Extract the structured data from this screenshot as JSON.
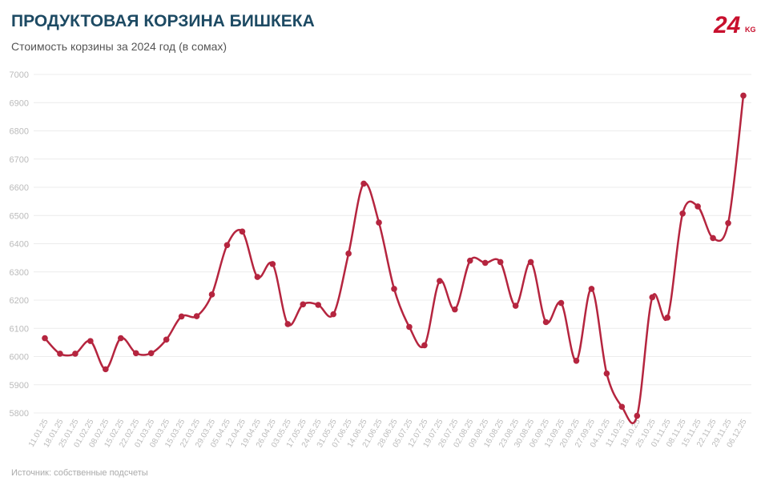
{
  "chart_data": {
    "type": "line",
    "title": "ПРОДУКТОВАЯ КОРЗИНА БИШКЕКА",
    "subtitle": "Стоимость корзины за 2024 год (в сомах)",
    "source": "Источник: собственные подсчеты",
    "logo": {
      "number": "24",
      "suffix": "KG"
    },
    "categories": [
      "11.01.25",
      "18.01.25",
      "25.01.25",
      "01.02.25",
      "08.02.25",
      "15.02.25",
      "22.02.25",
      "01.03.25",
      "08.03.25",
      "15.03.25",
      "22.03.25",
      "29.03.25",
      "05.04.25",
      "12.04.25",
      "19.04.25",
      "26.04.25",
      "03.05.25",
      "17.05.25",
      "24.05.25",
      "31.05.25",
      "07.06.25",
      "14.06.25",
      "21.06.25",
      "28.06.25",
      "05.07.25",
      "12.07.25",
      "19.07.25",
      "26.07.25",
      "02.08.25",
      "09.08.25",
      "16.08.25",
      "23.08.25",
      "30.08.25",
      "06.09.25",
      "13.09.25",
      "20.09.25",
      "27.09.25",
      "04.10.25",
      "11.10.25",
      "18.10.25",
      "25.10.25",
      "01.11.25",
      "08.11.25",
      "15.11.25",
      "22.11.25",
      "29.11.25",
      "06.12.25"
    ],
    "series": [
      {
        "name": "Стоимость корзины",
        "color": "#b5253f",
        "values": [
          6065,
          6010,
          6010,
          6055,
          5955,
          6065,
          6012,
          6012,
          6060,
          6142,
          6143,
          6220,
          6395,
          6443,
          6282,
          6328,
          6115,
          6185,
          6183,
          6150,
          6365,
          6613,
          6475,
          6240,
          6105,
          6040,
          6268,
          6167,
          6340,
          6332,
          6335,
          6180,
          6335,
          6122,
          6190,
          5985,
          6240,
          5940,
          5822,
          5790,
          6210,
          6138,
          6507,
          6532,
          6420,
          6473,
          6925
        ]
      }
    ],
    "ylim": [
      5800,
      7000
    ],
    "yticks": [
      5800,
      5900,
      6000,
      6100,
      6200,
      6300,
      6400,
      6500,
      6600,
      6700,
      6800,
      6900,
      7000
    ],
    "grid": true
  }
}
